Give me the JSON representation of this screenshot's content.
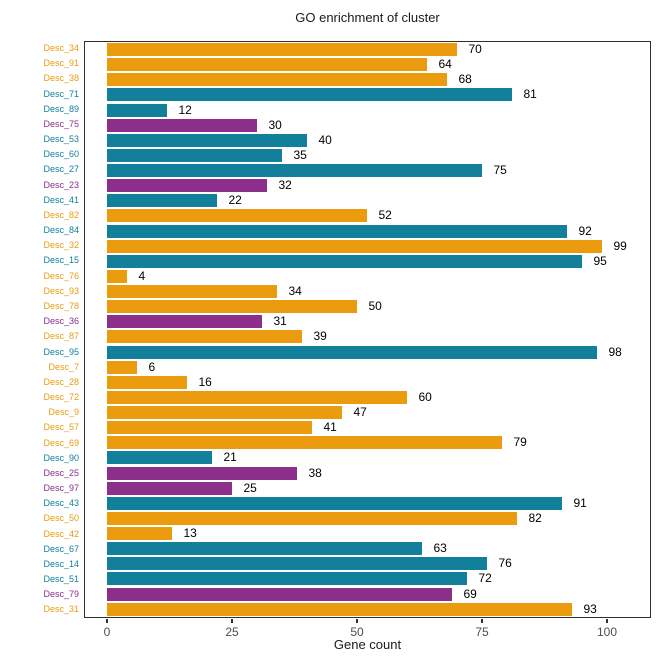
{
  "title": "GO enrichment of cluster",
  "palette": {
    "orange": "#EA9B0E",
    "teal": "#12809B",
    "purple": "#8B2F8B"
  },
  "chart_data": {
    "type": "bar",
    "orientation": "horizontal",
    "title": "GO enrichment of cluster",
    "xlabel": "Gene count",
    "ylabel": "",
    "xlim": [
      0,
      100
    ],
    "x_ticks": [
      0,
      25,
      50,
      75,
      100
    ],
    "grid": false,
    "legend": "none",
    "value_labels": true,
    "categories": [
      "Desc_34",
      "Desc_91",
      "Desc_38",
      "Desc_71",
      "Desc_89",
      "Desc_75",
      "Desc_53",
      "Desc_60",
      "Desc_27",
      "Desc_23",
      "Desc_41",
      "Desc_82",
      "Desc_84",
      "Desc_32",
      "Desc_15",
      "Desc_76",
      "Desc_93",
      "Desc_78",
      "Desc_36",
      "Desc_87",
      "Desc_95",
      "Desc_7",
      "Desc_28",
      "Desc_72",
      "Desc_9",
      "Desc_57",
      "Desc_69",
      "Desc_90",
      "Desc_25",
      "Desc_97",
      "Desc_43",
      "Desc_50",
      "Desc_42",
      "Desc_67",
      "Desc_14",
      "Desc_51",
      "Desc_79",
      "Desc_31"
    ],
    "values": [
      70,
      64,
      68,
      81,
      12,
      30,
      40,
      35,
      75,
      32,
      22,
      52,
      92,
      99,
      95,
      4,
      34,
      50,
      31,
      39,
      98,
      6,
      16,
      60,
      47,
      41,
      79,
      21,
      38,
      25,
      91,
      82,
      13,
      63,
      76,
      72,
      69,
      93
    ],
    "groups": [
      "orange",
      "orange",
      "orange",
      "teal",
      "teal",
      "purple",
      "teal",
      "teal",
      "teal",
      "purple",
      "teal",
      "orange",
      "teal",
      "orange",
      "teal",
      "orange",
      "orange",
      "orange",
      "purple",
      "orange",
      "teal",
      "orange",
      "orange",
      "orange",
      "orange",
      "orange",
      "orange",
      "teal",
      "purple",
      "purple",
      "teal",
      "orange",
      "orange",
      "teal",
      "teal",
      "teal",
      "purple",
      "orange"
    ]
  }
}
